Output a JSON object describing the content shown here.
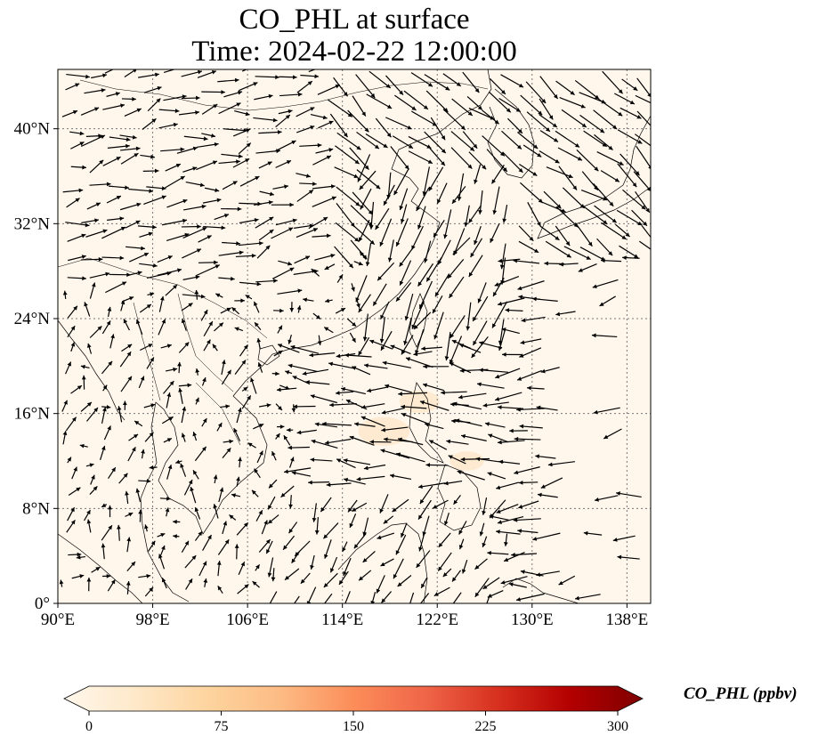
{
  "title": {
    "line1": "CO_PHL at surface",
    "line2": "Time: 2024-02-22 12:00:00"
  },
  "map": {
    "lon_range": [
      90,
      140
    ],
    "lat_range": [
      0,
      45
    ],
    "lon_ticks": [
      {
        "value": 90,
        "label": "90°E"
      },
      {
        "value": 98,
        "label": "98°E"
      },
      {
        "value": 106,
        "label": "106°E"
      },
      {
        "value": 114,
        "label": "114°E"
      },
      {
        "value": 122,
        "label": "122°E"
      },
      {
        "value": 130,
        "label": "130°E"
      },
      {
        "value": 138,
        "label": "138°E"
      }
    ],
    "lat_ticks": [
      {
        "value": 0,
        "label": "0°"
      },
      {
        "value": 8,
        "label": "8°N"
      },
      {
        "value": 16,
        "label": "16°N"
      },
      {
        "value": 24,
        "label": "24°N"
      },
      {
        "value": 32,
        "label": "32°N"
      },
      {
        "value": 40,
        "label": "40°N"
      }
    ],
    "field_background_color": "#fff7ec",
    "plume_color": "#fde6c8",
    "plume": [
      {
        "lon": 117.5,
        "lat": 14.5,
        "value": 18
      },
      {
        "lon": 120.5,
        "lat": 17.0,
        "value": 14
      },
      {
        "lon": 124.5,
        "lat": 12.0,
        "value": 12
      }
    ],
    "wind_color": "#000000",
    "coastline_color": "#000000"
  },
  "colorbar": {
    "title": "CO_PHL (ppbv)",
    "min": 0,
    "max": 300,
    "ticks": [
      {
        "value": 0,
        "label": "0"
      },
      {
        "value": 75,
        "label": "75"
      },
      {
        "value": 150,
        "label": "150"
      },
      {
        "value": 225,
        "label": "225"
      },
      {
        "value": 300,
        "label": "300"
      }
    ],
    "colors": [
      "#fff7ec",
      "#fee8c8",
      "#fdd49e",
      "#fdbb84",
      "#fc8d59",
      "#ef6548",
      "#d7301f",
      "#b30000",
      "#7f0000"
    ]
  }
}
